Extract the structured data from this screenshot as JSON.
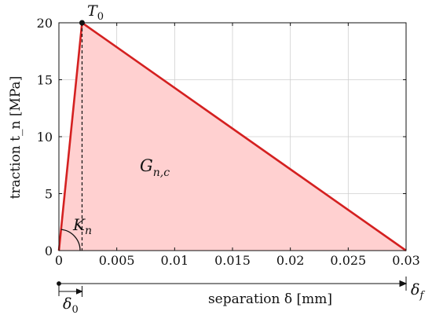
{
  "chart_data": {
    "type": "area",
    "title": "",
    "xlabel": "separation δ [mm]",
    "ylabel": "traction t_n [MPa]",
    "xlim": [
      0,
      0.03
    ],
    "ylim": [
      0,
      20
    ],
    "grid": true,
    "x_ticks": [
      0,
      0.005,
      0.01,
      0.015,
      0.02,
      0.025,
      0.03
    ],
    "x_tick_labels": [
      "0",
      "0.005",
      "0.01",
      "0.015",
      "0.02",
      "0.025",
      "0.03"
    ],
    "y_ticks": [
      0,
      5,
      10,
      15,
      20
    ],
    "y_tick_labels": [
      "0",
      "5",
      "10",
      "15",
      "20"
    ],
    "series": [
      {
        "x": [
          0,
          0.002,
          0.03
        ],
        "y": [
          0,
          20,
          0
        ]
      }
    ],
    "peak": {
      "x": 0.002,
      "y": 20
    },
    "annotations": {
      "peak_label": "T",
      "peak_label_sub": "0",
      "area_label": "G",
      "area_label_sub": "n,c",
      "stiffness_label": "K",
      "stiffness_label_sub": "n",
      "delta0_label": "δ",
      "delta0_sub": "0",
      "deltaf_label": "δ",
      "deltaf_sub": "f"
    },
    "colors": {
      "line": "#d42020",
      "fill": "#ffd0d0"
    }
  }
}
